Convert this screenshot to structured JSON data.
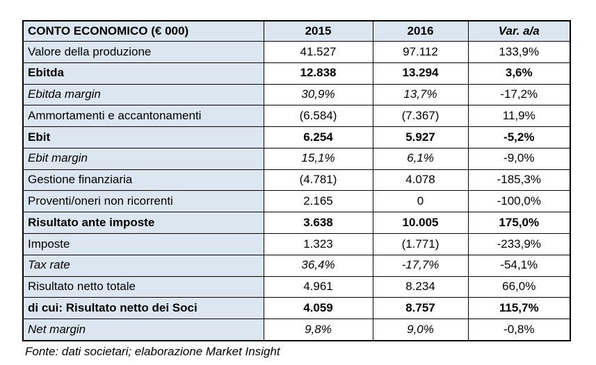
{
  "colors": {
    "accent_bg": "#dce6f1",
    "border": "#000000",
    "text": "#000000",
    "page_bg": "#ffffff"
  },
  "table": {
    "header": {
      "title": "CONTO ECONOMICO (€ 000)",
      "col_2015": "2015",
      "col_2016": "2016",
      "col_var": "Var. a/a"
    },
    "rows": [
      {
        "label": "Valore della produzione",
        "v2015": "41.527",
        "v2016": "97.112",
        "var": "133,9%",
        "style": "normal"
      },
      {
        "label": "Ebitda",
        "v2015": "12.838",
        "v2016": "13.294",
        "var": "3,6%",
        "style": "bold"
      },
      {
        "label": "Ebitda margin",
        "v2015": "30,9%",
        "v2016": "13,7%",
        "var": "-17,2%",
        "style": "italic"
      },
      {
        "label": "Ammortamenti e accantonamenti",
        "v2015": "(6.584)",
        "v2016": "(7.367)",
        "var": "11,9%",
        "style": "normal"
      },
      {
        "label": "Ebit",
        "v2015": "6.254",
        "v2016": "5.927",
        "var": "-5,2%",
        "style": "bold"
      },
      {
        "label": "Ebit margin",
        "v2015": "15,1%",
        "v2016": "6,1%",
        "var": "-9,0%",
        "style": "italic"
      },
      {
        "label": "Gestione finanziaria",
        "v2015": "(4.781)",
        "v2016": "4.078",
        "var": "-185,3%",
        "style": "normal"
      },
      {
        "label": "Proventi/oneri non ricorrenti",
        "v2015": "2.165",
        "v2016": "0",
        "var": "-100,0%",
        "style": "normal"
      },
      {
        "label": "Risultato ante imposte",
        "v2015": "3.638",
        "v2016": "10.005",
        "var": "175,0%",
        "style": "bold"
      },
      {
        "label": "Imposte",
        "v2015": "1.323",
        "v2016": "(1.771)",
        "var": "-233,9%",
        "style": "normal"
      },
      {
        "label": "Tax rate",
        "v2015": "36,4%",
        "v2016": "-17,7%",
        "var": "-54,1%",
        "style": "italic"
      },
      {
        "label": "Risultato netto totale",
        "v2015": "4.961",
        "v2016": "8.234",
        "var": "66,0%",
        "style": "normal"
      },
      {
        "label": "di cui: Risultato netto dei Soci",
        "v2015": "4.059",
        "v2016": "8.757",
        "var": "115,7%",
        "style": "bold"
      },
      {
        "label": "Net margin",
        "v2015": "9,8%",
        "v2016": "9,0%",
        "var": "-0,8%",
        "style": "italic"
      }
    ]
  },
  "footer": {
    "source_note": "Fonte: dati societari; elaborazione Market Insight"
  }
}
